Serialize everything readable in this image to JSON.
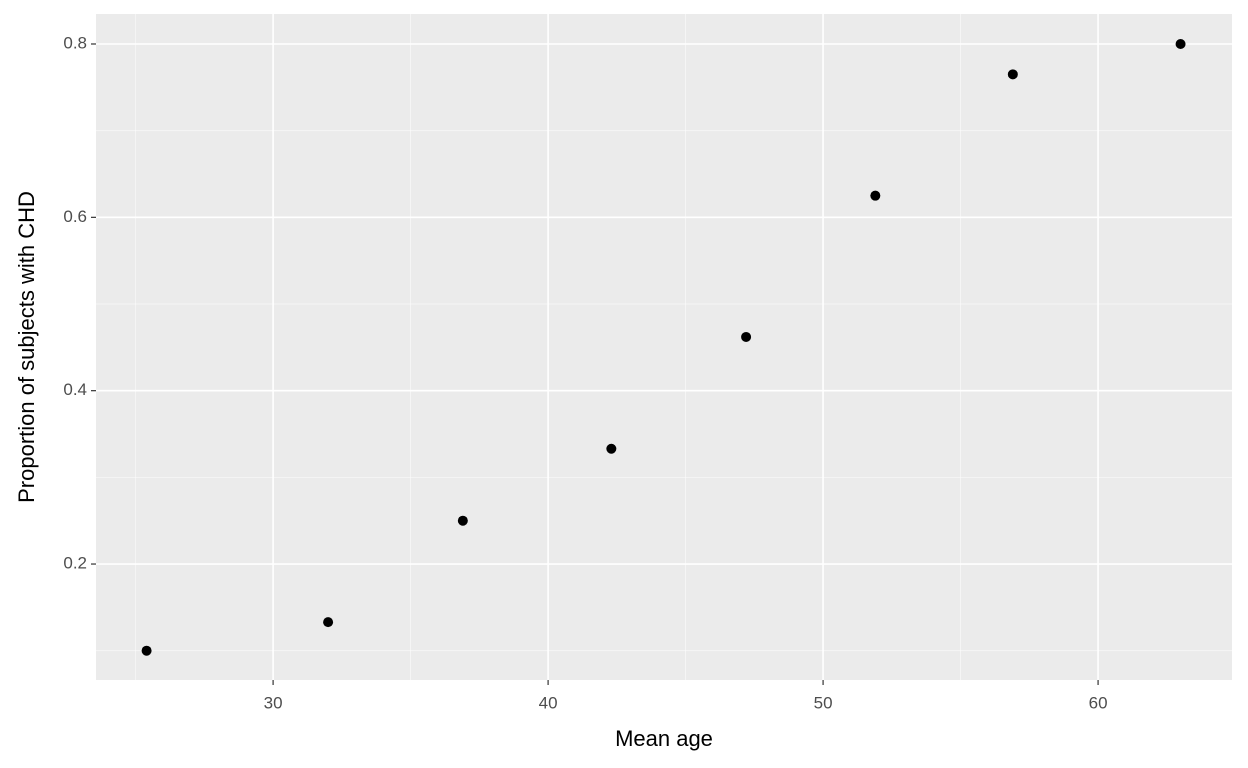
{
  "chart_data": {
    "type": "scatter",
    "x_label": "Mean age",
    "y_label": "Proportion of subjects with CHD",
    "x": [
      25.4,
      32.0,
      36.9,
      42.3,
      47.2,
      51.9,
      56.9,
      63.0
    ],
    "values": [
      0.1,
      0.133,
      0.25,
      0.333,
      0.462,
      0.625,
      0.765,
      0.8
    ],
    "color": "#000000",
    "xlim": [
      23.56,
      64.87
    ],
    "ylim": [
      0.0662,
      0.8346
    ],
    "xticks": [
      30,
      40,
      50,
      60
    ],
    "yticks": [
      0.2,
      0.4,
      0.6,
      0.8
    ],
    "grid": true
  }
}
